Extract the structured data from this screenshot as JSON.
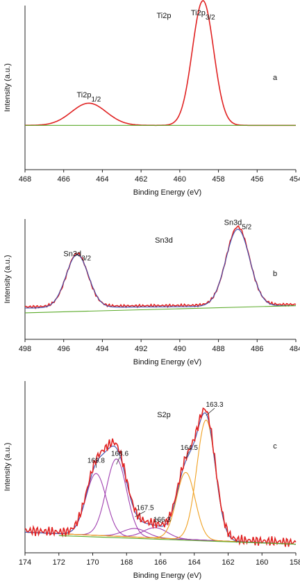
{
  "chart_data": [
    {
      "type": "line",
      "panel_letter": "a",
      "title": "Ti2p",
      "xlabel": "Binding Energy (eV)",
      "ylabel": "Intensity (a.u.)",
      "xlim": [
        468,
        454
      ],
      "x_reversed": true,
      "xticks": [
        468,
        466,
        464,
        462,
        460,
        458,
        456,
        454
      ],
      "ylim": [
        0,
        1
      ],
      "grid": false,
      "annotations": [
        {
          "base": "Ti2p",
          "sub": "1/2",
          "x": 464.7,
          "y": 0.44
        },
        {
          "base": "Ti2p",
          "sub": "3/2",
          "x": 458.8,
          "y": 0.94
        }
      ],
      "series": [
        {
          "color": "#e02020",
          "peaks": [
            [
              464.7,
              0.135,
              0.9
            ],
            [
              458.8,
              0.76,
              0.55
            ]
          ],
          "baseline": [
            0.27,
            0.27
          ],
          "noise": 0
        },
        {
          "color": "#5aaa28",
          "line": [
            [
              468,
              0.27
            ],
            [
              454,
              0.27
            ]
          ]
        }
      ]
    },
    {
      "type": "line",
      "panel_letter": "b",
      "title": "Sn3d",
      "xlabel": "Binding Energy (eV)",
      "ylabel": "Intensity (a.u.)",
      "xlim": [
        498,
        484
      ],
      "x_reversed": true,
      "xticks": [
        498,
        496,
        494,
        492,
        490,
        488,
        486,
        484
      ],
      "ylim": [
        0,
        1
      ],
      "grid": false,
      "annotations": [
        {
          "base": "Sn3d",
          "sub": "3/2",
          "x": 495.3,
          "y": 0.69
        },
        {
          "base": "Sn3d",
          "sub": "5/2",
          "x": 487.0,
          "y": 0.95
        }
      ],
      "series": [
        {
          "color": "#e02020",
          "peaks": [
            [
              495.3,
              0.44,
              0.55
            ],
            [
              487.0,
              0.65,
              0.6
            ]
          ],
          "baseline": [
            0.27,
            0.29
          ],
          "noise": 0.012
        },
        {
          "color": "#3a4fb0",
          "peaks": [
            [
              495.3,
              0.44,
              0.58
            ],
            [
              487.0,
              0.64,
              0.62
            ]
          ],
          "baseline": [
            0.26,
            0.28
          ],
          "noise": 0
        },
        {
          "color": "#5aaa28",
          "line": [
            [
              498,
              0.22
            ],
            [
              484,
              0.28
            ]
          ]
        }
      ]
    },
    {
      "type": "line",
      "panel_letter": "c",
      "title": "S2p",
      "xlabel": "Binding Energy (eV)",
      "ylabel": "Intensity (a.u.)",
      "xlim": [
        174,
        158
      ],
      "x_reversed": true,
      "xticks": [
        174,
        172,
        170,
        168,
        166,
        164,
        162,
        160,
        158
      ],
      "ylim": [
        0,
        1
      ],
      "grid": false,
      "annotations": [
        {
          "text": "169.8",
          "x": 169.8,
          "y": 0.495,
          "tx": 169.8,
          "ty": 0.525
        },
        {
          "text": "168.6",
          "x": 168.6,
          "y": 0.515,
          "tx": 168.4,
          "ty": 0.565
        },
        {
          "text": "167.5",
          "x": 167.5,
          "y": 0.21,
          "tx": 166.9,
          "ty": 0.25
        },
        {
          "text": "166.3",
          "x": 166.3,
          "y": 0.2,
          "tx": 165.9,
          "ty": 0.18
        },
        {
          "text": "164.5",
          "x": 164.5,
          "y": 0.55,
          "tx": 164.3,
          "ty": 0.6
        },
        {
          "text": "163.3",
          "x": 163.3,
          "y": 0.8,
          "tx": 162.8,
          "ty": 0.85
        }
      ],
      "series": [
        {
          "color": "#a040b0",
          "peaks": [
            [
              169.8,
              0.36,
              0.6
            ]
          ],
          "baseline": [
            0.12,
            0.05
          ],
          "noise": 0
        },
        {
          "color": "#a040b0",
          "peaks": [
            [
              168.6,
              0.45,
              0.6
            ]
          ],
          "baseline": [
            0.12,
            0.05
          ],
          "noise": 0
        },
        {
          "color": "#a040b0",
          "peaks": [
            [
              167.5,
              0.05,
              0.7
            ]
          ],
          "baseline": [
            0.12,
            0.05
          ],
          "noise": 0
        },
        {
          "color": "#a040b0",
          "peaks": [
            [
              166.3,
              0.06,
              0.7
            ]
          ],
          "baseline": [
            0.12,
            0.05
          ],
          "noise": 0
        },
        {
          "color": "#f0a020",
          "peaks": [
            [
              164.5,
              0.39,
              0.55
            ]
          ],
          "baseline": [
            0.12,
            0.05
          ],
          "noise": 0
        },
        {
          "color": "#f0a020",
          "peaks": [
            [
              163.3,
              0.7,
              0.55
            ]
          ],
          "baseline": [
            0.12,
            0.05
          ],
          "noise": 0
        },
        {
          "color": "#3a4fb0",
          "peaks": [
            [
              169.8,
              0.36,
              0.6
            ],
            [
              168.6,
              0.45,
              0.6
            ],
            [
              167.5,
              0.05,
              0.7
            ],
            [
              166.3,
              0.06,
              0.7
            ],
            [
              164.5,
              0.39,
              0.55
            ],
            [
              163.3,
              0.7,
              0.55
            ]
          ],
          "baseline": [
            0.12,
            0.05
          ],
          "noise": 0
        },
        {
          "color": "#e02020",
          "peaks": [
            [
              169.8,
              0.37,
              0.6
            ],
            [
              168.6,
              0.46,
              0.6
            ],
            [
              167.5,
              0.05,
              0.7
            ],
            [
              166.3,
              0.06,
              0.7
            ],
            [
              164.5,
              0.4,
              0.55
            ],
            [
              163.3,
              0.71,
              0.55
            ]
          ],
          "baseline": [
            0.13,
            0.06
          ],
          "noise": 0.03
        },
        {
          "color": "#5aaa28",
          "line": [
            [
              172,
              0.1
            ],
            [
              158,
              0.05
            ]
          ]
        }
      ]
    }
  ]
}
